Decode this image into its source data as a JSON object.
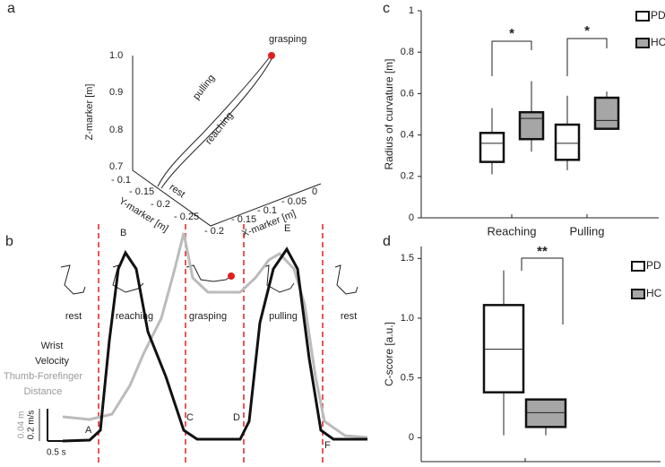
{
  "panel_a": {
    "letter": "a",
    "zticks": [
      "1.0",
      "0.9",
      "0.8",
      "0.7"
    ],
    "yticks": [
      "- 0.1",
      "- 0.15",
      "- 0.2",
      "- 0.25"
    ],
    "xticks": [
      "- 0.2",
      "- 0.15",
      "- 0.1",
      "- 0.05",
      "0"
    ],
    "zlabel": "Z-marker [m]",
    "ylabel": "Y-marker [m]",
    "xlabel": "X-marker [m]",
    "labels": {
      "grasping": "grasping",
      "pulling": "pulling",
      "reaching": "reaching",
      "rest": "rest"
    }
  },
  "panel_b": {
    "letter": "b",
    "phases": [
      "rest",
      "reaching",
      "grasping",
      "pulling",
      "rest"
    ],
    "legend": [
      "Wrist",
      "Velocity",
      "Thumb-Forefinger",
      "Distance"
    ],
    "points": [
      "A",
      "B",
      "C",
      "D",
      "E",
      "F"
    ],
    "scale": [
      "0.04 m",
      "0.2 m/s",
      "0.5 s"
    ]
  },
  "chart_data": [
    {
      "type": "box",
      "letter": "c",
      "ylabel": "Radius of curvature [m]",
      "categories": [
        "Reaching",
        "Pulling"
      ],
      "series": [
        {
          "name": "PD",
          "color": "#ffffff",
          "boxes": [
            [
              0.21,
              0.27,
              0.36,
              0.41,
              0.53
            ],
            [
              0.23,
              0.28,
              0.36,
              0.45,
              0.59
            ]
          ]
        },
        {
          "name": "HC",
          "color": "#a6a6a6",
          "boxes": [
            [
              0.32,
              0.38,
              0.48,
              0.51,
              0.66
            ],
            [
              0.43,
              0.43,
              0.47,
              0.58,
              0.61
            ]
          ]
        }
      ],
      "ylim": [
        0,
        1
      ],
      "yticks": [
        0,
        0.2,
        0.4,
        0.6,
        0.8,
        1
      ],
      "annotations": [
        "*",
        "*"
      ],
      "legend": "upper right"
    },
    {
      "type": "box",
      "letter": "d",
      "ylabel": "C-score [a.u.]",
      "categories": [
        null
      ],
      "series": [
        {
          "name": "PD",
          "color": "#ffffff",
          "boxes": [
            [
              0.02,
              0.38,
              0.74,
              1.11,
              1.4
            ]
          ]
        },
        {
          "name": "HC",
          "color": "#a6a6a6",
          "boxes": [
            [
              0.02,
              0.09,
              0.21,
              0.32,
              0.32
            ]
          ]
        }
      ],
      "ylim": [
        -0.2,
        1.6
      ],
      "yticks": [
        0,
        0.5,
        {
          "value": 1,
          "label": "1.0"
        },
        1.5
      ],
      "annotations": [
        "**"
      ],
      "legend": "upper right"
    }
  ]
}
